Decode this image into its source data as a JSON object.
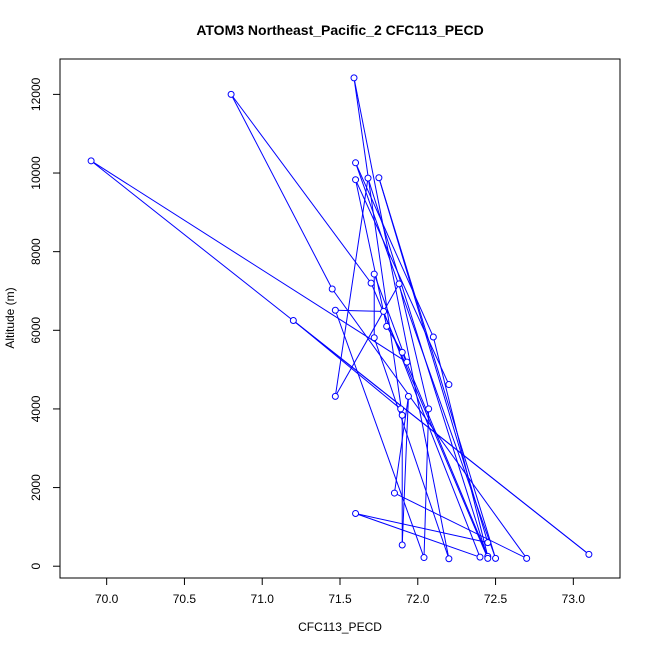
{
  "chart_data": {
    "type": "scatter",
    "title": "ATOM3 Northeast_Pacific_2 CFC113_PECD",
    "xlabel": "CFC113_PECD",
    "ylabel": "Altitude (m)",
    "xlim": [
      69.7,
      73.3
    ],
    "ylim": [
      -300,
      12900
    ],
    "xticks": [
      70.0,
      70.5,
      71.0,
      71.5,
      72.0,
      72.5,
      73.0
    ],
    "xtick_labels": [
      "70.0",
      "70.5",
      "71.0",
      "71.5",
      "72.0",
      "72.5",
      "73.0"
    ],
    "yticks": [
      0,
      2000,
      4000,
      6000,
      8000,
      10000,
      12000
    ],
    "ytick_labels": [
      "0",
      "2000",
      "4000",
      "6000",
      "8000",
      "10000",
      "12000"
    ],
    "line_color": "#0000ff",
    "marker_color": "#0000ff",
    "marker": "open-circle",
    "grid": false,
    "series": [
      {
        "points": [
          [
            72.2,
            4620
          ],
          [
            71.6,
            9830
          ],
          [
            71.8,
            6100
          ],
          [
            71.9,
            5440
          ],
          [
            72.45,
            250
          ],
          [
            72.1,
            5830
          ],
          [
            71.6,
            10260
          ],
          [
            72.5,
            200
          ],
          [
            71.75,
            9880
          ],
          [
            72.45,
            600
          ],
          [
            71.6,
            1340
          ],
          [
            72.4,
            230
          ],
          [
            71.78,
            6480
          ],
          [
            71.47,
            6510
          ],
          [
            72.04,
            220
          ],
          [
            72.07,
            4000
          ],
          [
            71.88,
            7180
          ],
          [
            71.47,
            4320
          ],
          [
            71.68,
            9870
          ],
          [
            72.45,
            200
          ],
          [
            71.7,
            7200
          ],
          [
            70.8,
            12000
          ],
          [
            71.45,
            7050
          ],
          [
            72.7,
            200
          ],
          [
            71.85,
            1860
          ],
          [
            71.94,
            4320
          ],
          [
            71.9,
            540
          ],
          [
            71.9,
            3840
          ],
          [
            71.59,
            12420
          ],
          [
            72.2,
            190
          ],
          [
            71.72,
            5810
          ],
          [
            71.72,
            7430
          ],
          [
            71.93,
            5190
          ],
          [
            69.9,
            10310
          ],
          [
            73.1,
            300
          ],
          [
            71.2,
            6250
          ],
          [
            71.89,
            4000
          ]
        ]
      }
    ]
  }
}
